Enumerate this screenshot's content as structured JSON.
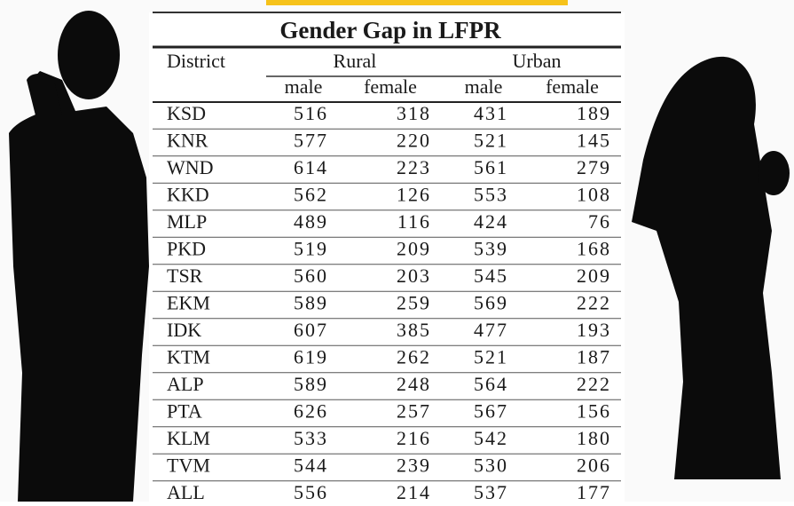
{
  "table": {
    "title": "Gender Gap in LFPR",
    "header": [
      "District",
      "Rural",
      "Urban"
    ],
    "subheader": [
      "male",
      "female",
      "male",
      "female"
    ],
    "rows": [
      [
        "KSD",
        516,
        318,
        431,
        189
      ],
      [
        "KNR",
        577,
        220,
        521,
        145
      ],
      [
        "WND",
        614,
        223,
        561,
        279
      ],
      [
        "KKD",
        562,
        126,
        553,
        108
      ],
      [
        "MLP",
        489,
        116,
        424,
        76
      ],
      [
        "PKD",
        519,
        209,
        539,
        168
      ],
      [
        "TSR",
        560,
        203,
        545,
        209
      ],
      [
        "EKM",
        589,
        259,
        569,
        222
      ],
      [
        "IDK",
        607,
        385,
        477,
        193
      ],
      [
        "KTM",
        619,
        262,
        521,
        187
      ],
      [
        "ALP",
        589,
        248,
        564,
        222
      ],
      [
        "PTA",
        626,
        257,
        567,
        156
      ],
      [
        "KLM",
        533,
        216,
        542,
        180
      ],
      [
        "TVM",
        544,
        239,
        530,
        206
      ],
      [
        "ALL",
        556,
        214,
        537,
        177
      ]
    ]
  }
}
